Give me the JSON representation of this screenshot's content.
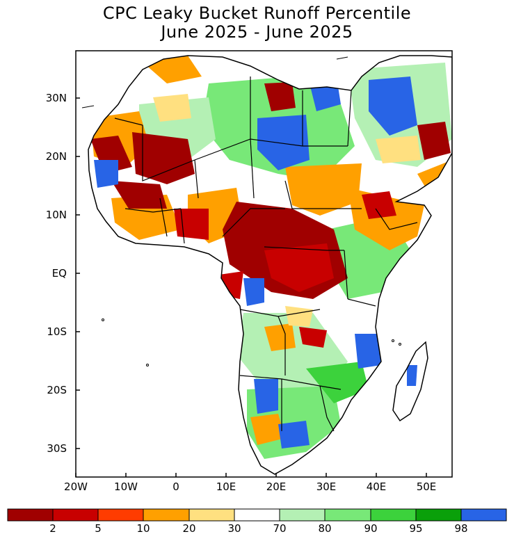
{
  "title": {
    "line1": "CPC Leaky Bucket Runoff Percentile",
    "line2": "June 2025 - June 2025"
  },
  "axes": {
    "latitude_labels": [
      "30N",
      "20N",
      "10N",
      "EQ",
      "10S",
      "20S",
      "30S"
    ],
    "longitude_labels": [
      "20W",
      "10W",
      "0",
      "10E",
      "20E",
      "30E",
      "40E",
      "50E"
    ]
  },
  "colorbar": {
    "tick_labels": [
      "2",
      "5",
      "10",
      "20",
      "30",
      "70",
      "80",
      "90",
      "95",
      "98"
    ],
    "colors": [
      "#a00000",
      "#c80000",
      "#ff3c00",
      "#ffa000",
      "#ffe080",
      "#ffffff",
      "#b4f0b4",
      "#78e878",
      "#3cd23c",
      "#0aa00a",
      "#2864e6"
    ]
  },
  "map": {
    "region": "Africa",
    "variable": "Runoff percentile"
  }
}
